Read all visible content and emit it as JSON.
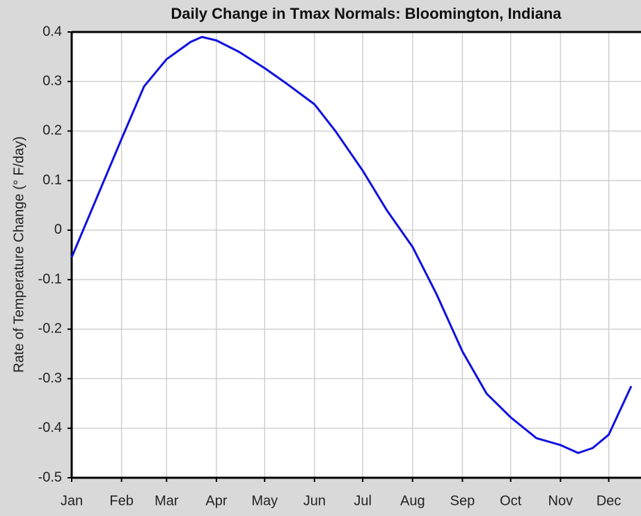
{
  "chart_data": {
    "type": "line",
    "title": "Daily Change in Tmax Normals: Bloomington, Indiana",
    "y_label": "Rate of Temperature Change (° F/day)",
    "x": [
      1,
      32,
      46,
      60,
      75,
      82,
      91,
      105,
      121,
      135,
      152,
      165,
      182,
      197,
      213,
      228,
      244,
      259,
      274,
      290,
      305,
      316,
      325,
      335,
      349
    ],
    "series": [
      {
        "color": "#1010e0",
        "values": [
          -0.055,
          0.184,
          0.29,
          0.345,
          0.38,
          0.39,
          0.383,
          0.36,
          0.327,
          0.295,
          0.254,
          0.2,
          0.12,
          0.04,
          -0.034,
          -0.13,
          -0.245,
          -0.33,
          -0.378,
          -0.42,
          -0.434,
          -0.45,
          -0.44,
          -0.413,
          -0.315
        ]
      }
    ],
    "xlim": [
      1,
      349
    ],
    "xticks": [
      {
        "value": 1,
        "label": "Jan"
      },
      {
        "value": 32,
        "label": "Feb"
      },
      {
        "value": 60,
        "label": "Mar"
      },
      {
        "value": 91,
        "label": "Apr"
      },
      {
        "value": 121,
        "label": "May"
      },
      {
        "value": 152,
        "label": "Jun"
      },
      {
        "value": 182,
        "label": "Jul"
      },
      {
        "value": 213,
        "label": "Aug"
      },
      {
        "value": 244,
        "label": "Sep"
      },
      {
        "value": 274,
        "label": "Oct"
      },
      {
        "value": 305,
        "label": "Nov"
      },
      {
        "value": 335,
        "label": "Dec"
      }
    ],
    "ylim": [
      -0.5,
      0.4
    ],
    "yticks": [
      -0.5,
      -0.4,
      -0.3,
      -0.2,
      -0.1,
      0,
      0.1,
      0.2,
      0.3,
      0.4
    ],
    "grid": true
  }
}
